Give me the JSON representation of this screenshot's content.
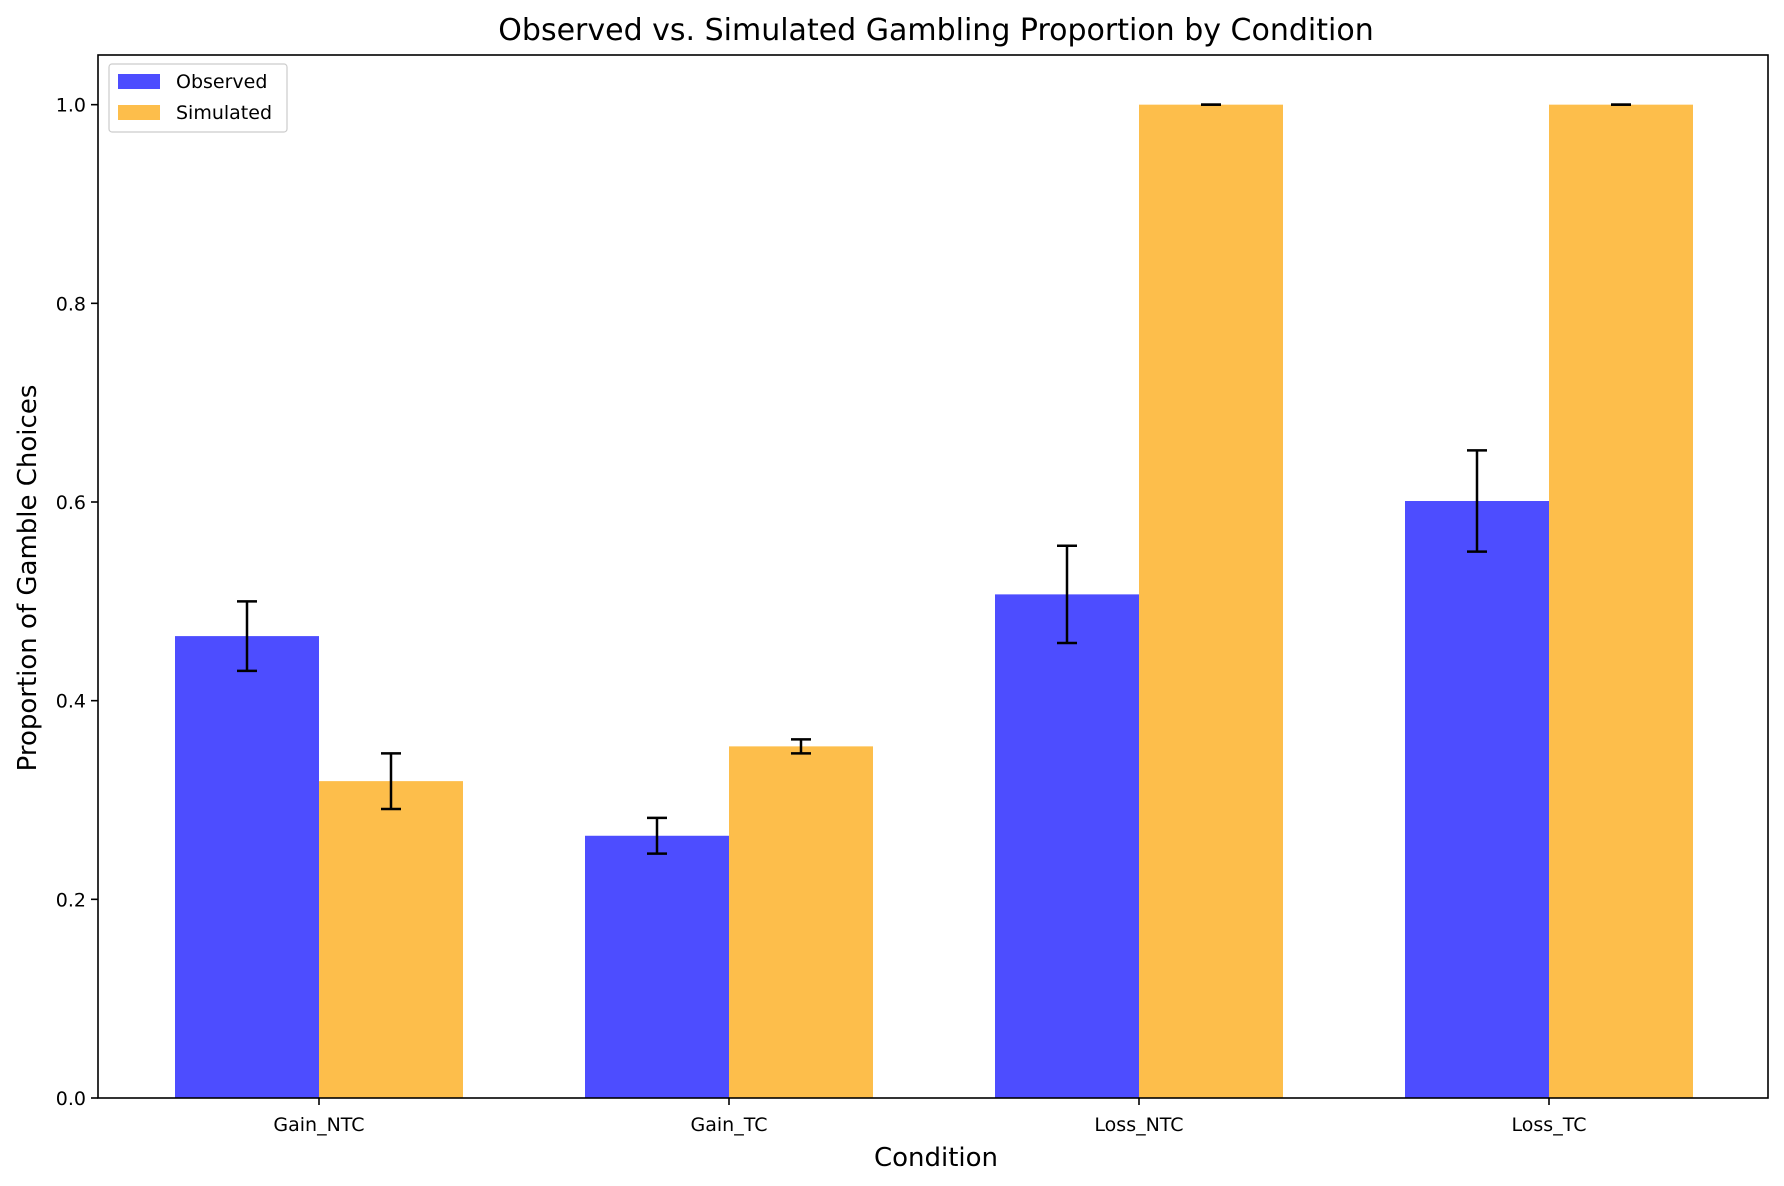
{
  "chart_data": {
    "type": "bar",
    "title": "Observed vs. Simulated Gambling Proportion by Condition",
    "xlabel": "Condition",
    "ylabel": "Proportion of Gamble Choices",
    "categories": [
      "Gain_NTC",
      "Gain_TC",
      "Loss_NTC",
      "Loss_TC"
    ],
    "ylim": [
      0,
      1.05
    ],
    "yticks": [
      "0.0",
      "0.2",
      "0.4",
      "0.6",
      "0.8",
      "1.0"
    ],
    "grid": false,
    "legend_position": "top-left",
    "series": [
      {
        "name": "Observed",
        "color": "#4d4dff",
        "values": [
          0.465,
          0.264,
          0.507,
          0.601
        ],
        "errors": [
          0.035,
          0.018,
          0.049,
          0.051
        ]
      },
      {
        "name": "Simulated",
        "color": "#fdbe4b",
        "values": [
          0.319,
          0.354,
          1.0,
          1.0
        ],
        "errors": [
          0.028,
          0.007,
          0.0,
          0.0
        ]
      }
    ]
  }
}
